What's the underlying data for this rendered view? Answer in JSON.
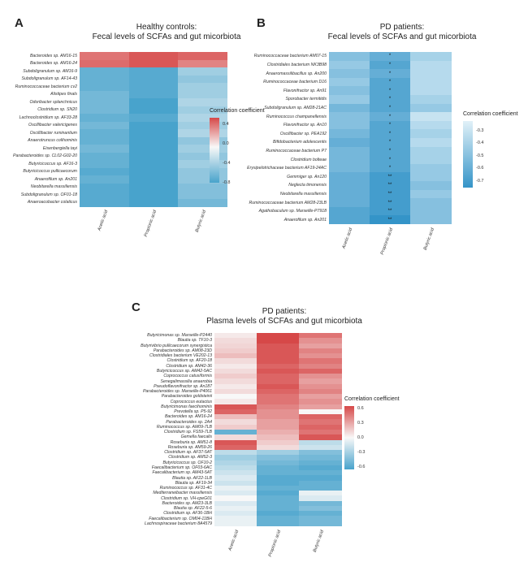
{
  "panels": [
    {
      "letter": "A",
      "title_line1": "Healthy controls:",
      "title_line2": "Fecal levels of SCFAs and gut micorbiota",
      "chart_data": {
        "type": "heatmap",
        "rows": [
          "Bacteroides sp. AM16-15",
          "Bacteroides sp. AM16-24",
          "Subdoligranulum sp. AM16-9",
          "Subdoligranulum sp. AF14-43",
          "Ruminococcaceae bacterium cv2",
          "Alistipes finals",
          "Odoribacter splanchnicus",
          "Clostridium sp. SN20",
          "Lachnoclostridium sp. AF33-28",
          "Oscillibacter valericigenes",
          "Oscillibacter ruminantium",
          "Anaerotruncus colihominis",
          "Eisenbergiella tayi",
          "Parabacteroides sp. CL02-G02-20",
          "Butyricicoccus sp. AF16-3",
          "Butyricicoccus pullicaecorum",
          "Anaerofilum sp. An201",
          "Neobitarella massiliensis",
          "Subdoligranulum sp. OF01-18",
          "Anaeroacobacter colaticus"
        ],
        "columns": [
          "Acetic acid",
          "Propionic acid",
          "Butyric acid"
        ],
        "values": [
          [
            0.45,
            0.55,
            0.5
          ],
          [
            0.48,
            0.55,
            0.4
          ],
          [
            -0.5,
            -0.55,
            -0.3
          ],
          [
            -0.5,
            -0.55,
            -0.35
          ],
          [
            -0.5,
            -0.55,
            -0.3
          ],
          [
            -0.45,
            -0.55,
            -0.3
          ],
          [
            -0.45,
            -0.6,
            -0.25
          ],
          [
            -0.45,
            -0.6,
            -0.3
          ],
          [
            -0.5,
            -0.55,
            -0.25
          ],
          [
            -0.45,
            -0.6,
            -0.3
          ],
          [
            -0.5,
            -0.6,
            -0.25
          ],
          [
            -0.5,
            -0.6,
            -0.35
          ],
          [
            -0.45,
            -0.6,
            -0.3
          ],
          [
            -0.5,
            -0.65,
            -0.35
          ],
          [
            -0.5,
            -0.65,
            -0.3
          ],
          [
            -0.55,
            -0.65,
            -0.35
          ],
          [
            -0.5,
            -0.65,
            -0.35
          ],
          [
            -0.55,
            -0.7,
            -0.4
          ],
          [
            -0.55,
            -0.7,
            -0.4
          ],
          [
            -0.55,
            -0.7,
            -0.45
          ]
        ],
        "stars": [],
        "legend": {
          "title": "Correlation coefficient",
          "ticks": [
            "0.4",
            "0.0",
            "-0.4",
            "-0.8"
          ],
          "range": [
            -0.8,
            0.55
          ]
        }
      }
    },
    {
      "letter": "B",
      "title_line1": "PD patients:",
      "title_line2": "Fecal levels of SCFAs and gut micorbiota",
      "chart_data": {
        "type": "heatmap",
        "rows": [
          "Ruminococcaceae bacterium AM07-15",
          "Clostridiales bacterium NK3B98",
          "Anaeromassilibacillus sp. An200",
          "Ruminococcaceae bacterium D16",
          "Flavonifractor sp. An91",
          "Sporobacter termitidis",
          "Subdoligranulum sp. AM28-21AC",
          "Ruminococcus champanellensis",
          "Flavonifractor sp. An10",
          "Oscillibacter sp. PEA192",
          "Bifidobacterium adolescentis",
          "Ruminococcaceae bacterium P7",
          "Clostridium bolteae",
          "Erysipelotrichaceae bacterium AF19-24AC",
          "Gemmiger sp. An120",
          "Neglecta timonensis",
          "Neobitarella massiliensis",
          "Ruminococcaceae bacterium AM28-23LB",
          "Agathobaculum sp. Marseille-P7918",
          "Anaerofilum sp. An201"
        ],
        "columns": [
          "Acetic acid",
          "Propionic acid",
          "Butyric acid"
        ],
        "values": [
          [
            -0.45,
            -0.55,
            -0.35
          ],
          [
            -0.4,
            -0.6,
            -0.3
          ],
          [
            -0.45,
            -0.55,
            -0.3
          ],
          [
            -0.4,
            -0.6,
            -0.3
          ],
          [
            -0.45,
            -0.6,
            -0.3
          ],
          [
            -0.4,
            -0.6,
            -0.35
          ],
          [
            -0.5,
            -0.6,
            -0.4
          ],
          [
            -0.45,
            -0.55,
            -0.25
          ],
          [
            -0.45,
            -0.6,
            -0.3
          ],
          [
            -0.5,
            -0.6,
            -0.35
          ],
          [
            -0.55,
            -0.6,
            -0.3
          ],
          [
            -0.5,
            -0.6,
            -0.35
          ],
          [
            -0.5,
            -0.6,
            -0.35
          ],
          [
            -0.5,
            -0.6,
            -0.4
          ],
          [
            -0.55,
            -0.65,
            -0.4
          ],
          [
            -0.55,
            -0.65,
            -0.45
          ],
          [
            -0.55,
            -0.65,
            -0.4
          ],
          [
            -0.55,
            -0.65,
            -0.45
          ],
          [
            -0.6,
            -0.65,
            -0.45
          ],
          [
            -0.6,
            -0.7,
            -0.45
          ]
        ],
        "stars": [
          "*",
          "*",
          "*",
          "*",
          "*",
          "*",
          "*",
          "*",
          "*",
          "*",
          "*",
          "*",
          "*",
          "*",
          "**",
          "**",
          "**",
          "**",
          "**",
          "**"
        ],
        "legend": {
          "title": "Correlation coefficient",
          "ticks": [
            "-0.3",
            "-0.4",
            "-0.5",
            "-0.6",
            "-0.7"
          ],
          "range": [
            -0.75,
            -0.22
          ]
        }
      }
    },
    {
      "letter": "C",
      "title_line1": "PD patients:",
      "title_line2": "Plasma levels of SCFAs and gut micorbiota",
      "chart_data": {
        "type": "heatmap",
        "rows": [
          "Butyricimonas sp. Marseille-P2440",
          "Blautia sp. TF10-3",
          "Butyrivibrio pullicaecorum synergistica",
          "Parabacteroides sp. AM08-23D",
          "Clostridiales bacterium VE202-13",
          "Clostridium sp. AF20-18",
          "Clostridium sp. AM42-36",
          "Butyricicoccus sp. AM42-5AC",
          "Coprococcus catus/formis",
          "Senegalimassilia anaerobia",
          "Pseudoflavonifractor sp. An187",
          "Parabacteroides sp. Marseille-P4061",
          "Parabacteroides goldsteinii",
          "Coprococcus eutactus",
          "Butyricimonas faecihominis",
          "Prevotella sp. P5-92",
          "Bacteroides sp. AM16-24",
          "Parabacteroides sp. 2A4",
          "Ruminococcus sp. AM09-7LB",
          "Clostridium sp. FS59-7LB",
          "Gemella faecalis",
          "Roseburia sp. AM51-8",
          "Roseburia sp. AM59-26",
          "Clostridium sp. AF37-5AT",
          "Clostridium sp. AM52-3",
          "Butyricicoccus sp. OF10-2",
          "Faecalibacterium sp. OF03-6AC",
          "Faecalibacterium sp. AM43-5AT",
          "Blautia sp. AF22-1LB",
          "Blautia sp. AF19-34",
          "Ruminococcus sp. AF31-4C",
          "Mediterraneibacter massiliensis",
          "Clostridium sp. VH-cpeG01",
          "Bacteroides sp. AM23-3LB",
          "Blautia sp. AF22-5-6",
          "Clostridium sp. AF36-1BH",
          "Faecalibacterium sp. OM04-11BH",
          "Lachnospiraceae bacterium 8A4579"
        ],
        "columns": [
          "Acetic acid",
          "Propionic acid",
          "Butyric acid"
        ],
        "values": [
          [
            0.05,
            0.6,
            0.45
          ],
          [
            0.1,
            0.6,
            0.35
          ],
          [
            0.12,
            0.55,
            0.3
          ],
          [
            0.15,
            0.55,
            0.4
          ],
          [
            0.2,
            0.55,
            0.35
          ],
          [
            0.1,
            0.55,
            0.45
          ],
          [
            0.05,
            0.5,
            0.4
          ],
          [
            0.1,
            0.55,
            0.5
          ],
          [
            0.15,
            0.5,
            0.35
          ],
          [
            0.1,
            0.5,
            0.3
          ],
          [
            0.05,
            0.55,
            0.35
          ],
          [
            0.1,
            0.5,
            0.4
          ],
          [
            0.0,
            0.45,
            0.3
          ],
          [
            0.05,
            0.45,
            0.35
          ],
          [
            0.55,
            0.4,
            0.3
          ],
          [
            0.5,
            0.35,
            0.0
          ],
          [
            0.2,
            0.35,
            0.5
          ],
          [
            0.1,
            0.3,
            0.45
          ],
          [
            0.15,
            0.3,
            0.5
          ],
          [
            -0.5,
            0.25,
            0.45
          ],
          [
            0.1,
            0.2,
            0.55
          ],
          [
            0.55,
            0.15,
            -0.2
          ],
          [
            0.5,
            0.1,
            -0.15
          ],
          [
            -0.2,
            -0.3,
            -0.4
          ],
          [
            -0.3,
            -0.4,
            -0.45
          ],
          [
            -0.25,
            -0.45,
            -0.5
          ],
          [
            -0.2,
            -0.5,
            -0.55
          ],
          [
            -0.15,
            -0.5,
            -0.5
          ],
          [
            -0.1,
            -0.55,
            -0.55
          ],
          [
            -0.15,
            -0.55,
            -0.5
          ],
          [
            -0.05,
            -0.5,
            -0.5
          ],
          [
            -0.1,
            -0.55,
            -0.05
          ],
          [
            0.0,
            -0.5,
            -0.1
          ],
          [
            -0.1,
            -0.5,
            -0.45
          ],
          [
            -0.05,
            -0.5,
            -0.4
          ],
          [
            -0.1,
            -0.55,
            -0.5
          ],
          [
            -0.05,
            -0.5,
            -0.45
          ],
          [
            -0.05,
            -0.5,
            -0.45
          ]
        ],
        "stars": [],
        "legend": {
          "title": "Correlation coefficient",
          "ticks": [
            "0.6",
            "0.3",
            "0.0",
            "-0.3",
            "-0.6"
          ],
          "range": [
            -0.65,
            0.65
          ]
        }
      }
    }
  ]
}
